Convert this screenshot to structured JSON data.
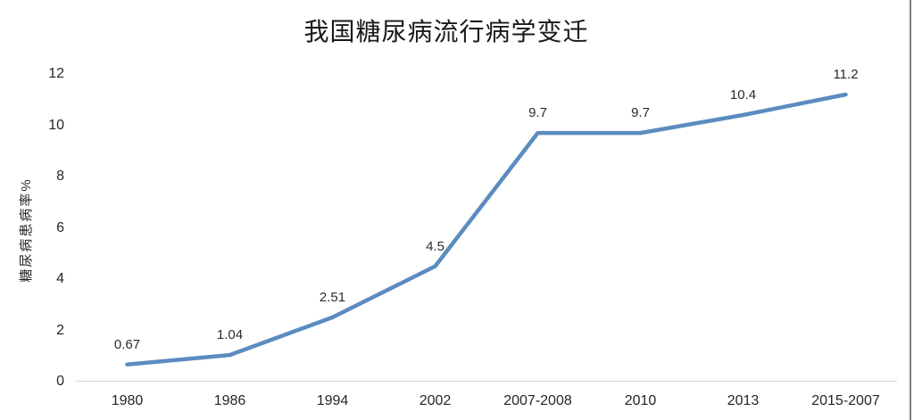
{
  "chart_data": {
    "type": "line",
    "title": "我国糖尿病流行病学变迁",
    "ylabel": "糖尿病患病率%",
    "xlabel": "",
    "categories": [
      "1980",
      "1986",
      "1994",
      "2002",
      "2007-2008",
      "2010",
      "2013",
      "2015-2007"
    ],
    "values": [
      0.67,
      1.04,
      2.51,
      4.5,
      9.7,
      9.7,
      10.4,
      11.2
    ],
    "point_labels": [
      "0.67",
      "1.04",
      "2.51",
      "4.5",
      "9.7",
      "9.7",
      "10.4",
      "11.2"
    ],
    "ylim": [
      0,
      12
    ],
    "yticks": [
      0,
      2,
      4,
      6,
      8,
      10,
      12
    ],
    "grid": false,
    "legend": "none",
    "line_color": "#5B8CBF",
    "axis_color": "#d6d6d6",
    "text_color": "#262626"
  }
}
